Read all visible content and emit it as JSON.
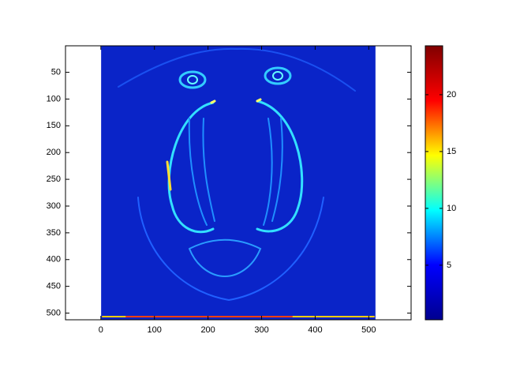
{
  "chart_data": {
    "type": "image",
    "xlim": [
      -66,
      579
    ],
    "ylim": [
      0.5,
      512.5
    ],
    "y_reversed": true,
    "xticks": [
      0,
      100,
      200,
      300,
      400,
      500
    ],
    "yticks": [
      50,
      100,
      150,
      200,
      250,
      300,
      350,
      400,
      450,
      500
    ],
    "image_extent": [
      0.5,
      512.5
    ],
    "colorbar": {
      "clim": [
        0.2,
        24.3
      ],
      "ticks": [
        5,
        10,
        15,
        20
      ],
      "colormap": [
        "#00008f",
        "#0000ff",
        "#00ffff",
        "#ffff00",
        "#ff0000",
        "#800000"
      ]
    }
  }
}
